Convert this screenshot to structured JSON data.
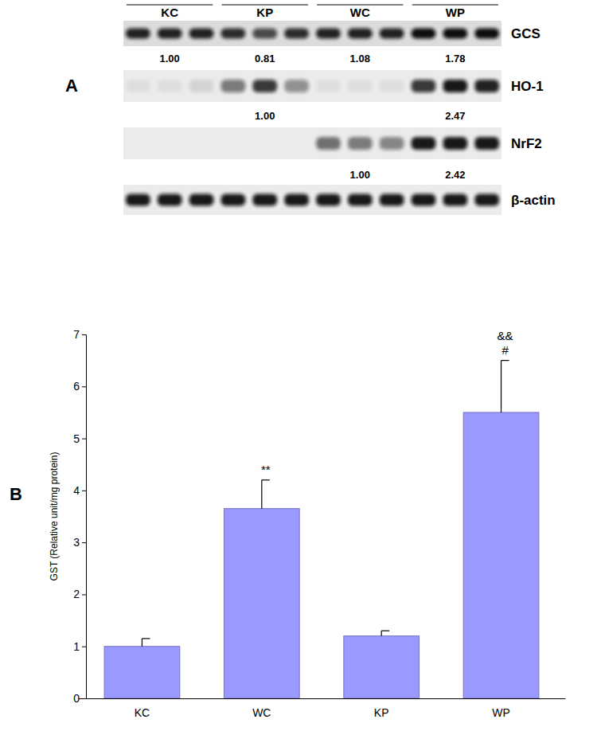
{
  "panel_labels": [
    "A",
    "B"
  ],
  "blot": {
    "groups": [
      "KC",
      "KP",
      "WC",
      "WP"
    ],
    "rows": [
      {
        "name": "GCS",
        "bands": [
          0.9,
          0.9,
          0.9,
          0.85,
          0.7,
          0.85,
          0.9,
          0.9,
          0.9,
          1,
          1,
          1
        ],
        "quant": [
          "1.00",
          "0.81",
          "1.08",
          "1.78"
        ]
      },
      {
        "name": "HO-1",
        "bands": [
          0.05,
          0.05,
          0.1,
          0.5,
          0.8,
          0.4,
          0.05,
          0.05,
          0.05,
          0.8,
          0.95,
          0.9
        ],
        "quant": [
          null,
          "1.00",
          null,
          "2.47"
        ]
      },
      {
        "name": "NrF2",
        "bands": [
          0,
          0,
          0,
          0,
          0,
          0,
          0.55,
          0.5,
          0.45,
          0.95,
          0.95,
          0.95
        ],
        "quant": [
          null,
          null,
          "1.00",
          "2.42"
        ]
      },
      {
        "name": "β-actin",
        "bands": [
          0.95,
          0.95,
          0.95,
          0.95,
          0.95,
          0.95,
          0.95,
          0.95,
          0.95,
          0.95,
          0.95,
          0.95
        ]
      }
    ]
  },
  "chart_data": {
    "type": "bar",
    "y_label": "GST (Relative unit/mg protein)",
    "categories": [
      "KC",
      "WC",
      "KP",
      "WP"
    ],
    "values": [
      1.0,
      3.65,
      1.2,
      5.5
    ],
    "errors": [
      0.15,
      0.55,
      0.1,
      1.0
    ],
    "color": "#9999ff",
    "ylim": [
      0,
      7
    ],
    "yticks": [
      0,
      1,
      2,
      3,
      4,
      5,
      6,
      7
    ],
    "grid": false,
    "annotations": [
      {
        "category": "WC",
        "text": "**"
      },
      {
        "category": "WP",
        "text": "#"
      },
      {
        "category": "WP",
        "text": "&&"
      }
    ]
  }
}
